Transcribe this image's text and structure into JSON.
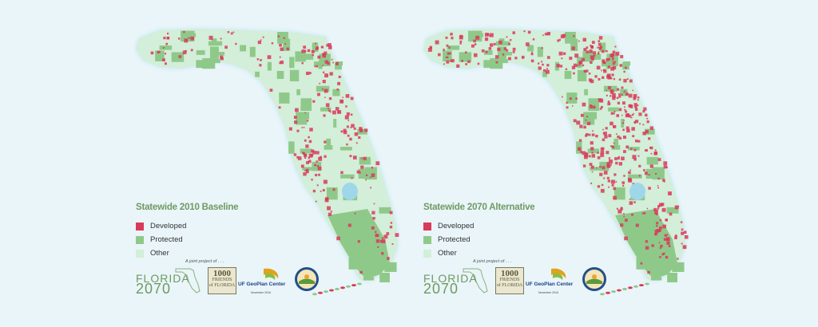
{
  "maps": [
    {
      "id": "baseline",
      "legend_title": "Statewide 2010 Baseline",
      "development_level": 0.35
    },
    {
      "id": "alternative",
      "legend_title": "Statewide 2070 Alternative",
      "development_level": 0.8
    }
  ],
  "legend": {
    "items": [
      {
        "label": "Developed",
        "color": "#d93a5a"
      },
      {
        "label": "Protected",
        "color": "#8fc98a"
      },
      {
        "label": "Other",
        "color": "#d3eed9"
      }
    ]
  },
  "credits": {
    "joint_project": "A joint project of . . .",
    "florida_logo_top": "FLORIDA",
    "florida_logo_bottom": "2070",
    "thousand_friends_number": "1000",
    "thousand_friends_line1": "FRIENDS",
    "thousand_friends_line2": "of FLORIDA",
    "uf_prefix": "UF",
    "uf_name": "GeoPlan Center",
    "date": "November 2016"
  },
  "colors": {
    "background": "#e9f5f9",
    "land_other": "#d3eed9",
    "protected": "#8fc98a",
    "developed": "#d93a5a",
    "water": "#9fd7ea",
    "title_green": "#6f9a63"
  }
}
